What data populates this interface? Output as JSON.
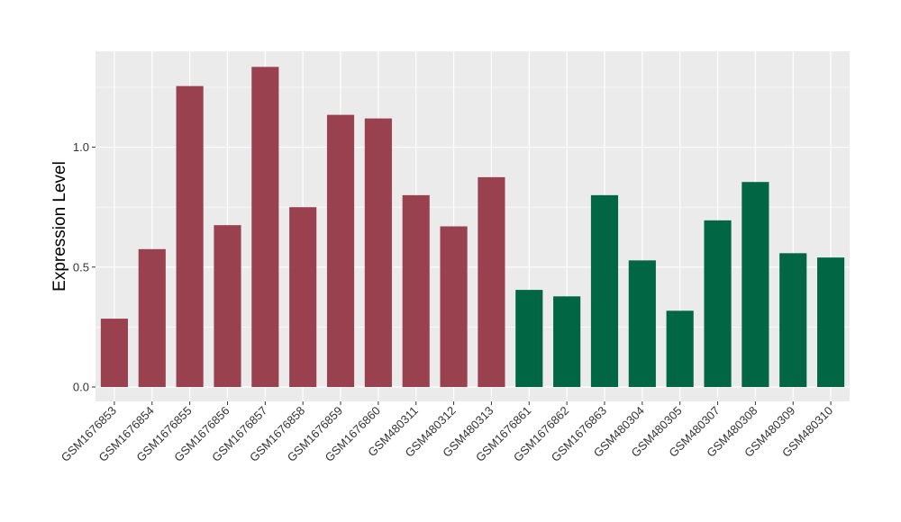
{
  "chart_data": {
    "type": "bar",
    "ylabel": "Expression Level",
    "xlabel": "",
    "title": "",
    "ylim": [
      -0.06,
      1.4
    ],
    "yticks": [
      0.0,
      0.5,
      1.0
    ],
    "ytick_labels": [
      "0.0",
      "0.5",
      "1.0"
    ],
    "categories": [
      "GSM1676853",
      "GSM1676854",
      "GSM1676855",
      "GSM1676856",
      "GSM1676857",
      "GSM1676858",
      "GSM1676859",
      "GSM1676860",
      "GSM480311",
      "GSM480312",
      "GSM480313",
      "GSM1676861",
      "GSM1676862",
      "GSM1676863",
      "GSM480304",
      "GSM480305",
      "GSM480307",
      "GSM480308",
      "GSM480309",
      "GSM480310"
    ],
    "values": [
      0.285,
      0.575,
      1.255,
      0.675,
      1.335,
      0.75,
      1.135,
      1.12,
      0.8,
      0.67,
      0.875,
      0.405,
      0.378,
      0.8,
      0.528,
      0.318,
      0.695,
      0.855,
      0.558,
      0.54
    ],
    "bar_colors": [
      "#9a4150",
      "#9a4150",
      "#9a4150",
      "#9a4150",
      "#9a4150",
      "#9a4150",
      "#9a4150",
      "#9a4150",
      "#9a4150",
      "#9a4150",
      "#9a4150",
      "#006644",
      "#006644",
      "#006644",
      "#006644",
      "#006644",
      "#006644",
      "#006644",
      "#006644",
      "#006644"
    ],
    "grid": true,
    "panel_background": "#ebebeb",
    "grid_color": "#ffffff"
  }
}
